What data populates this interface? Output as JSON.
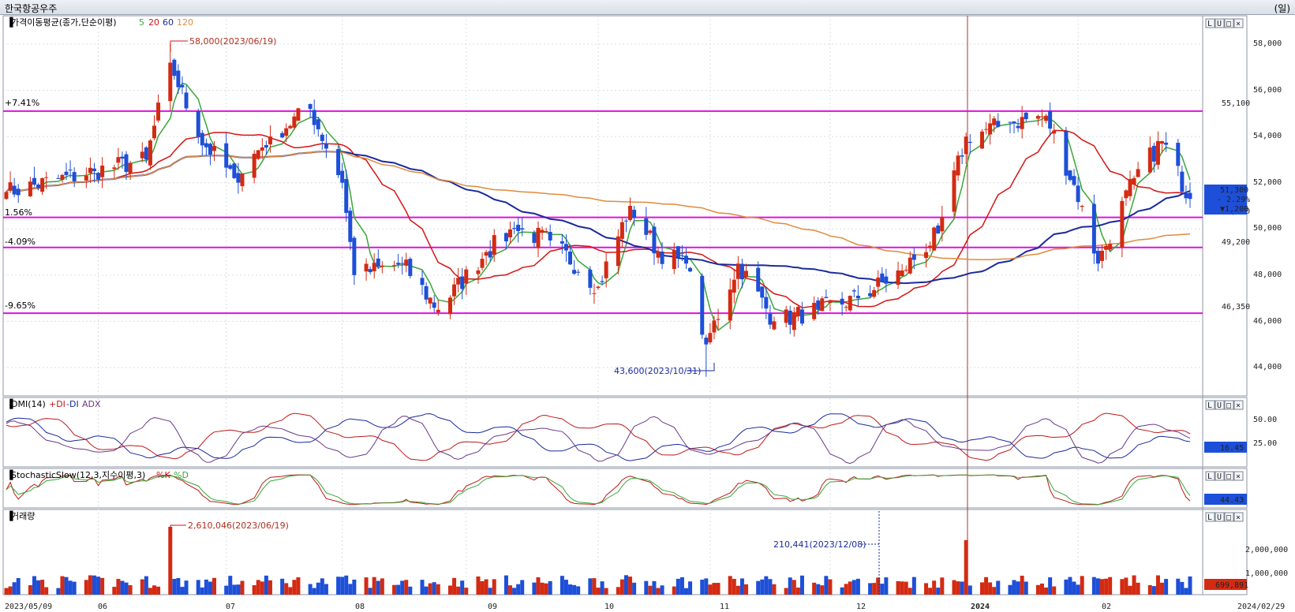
{
  "window": {
    "title": "한국항공우주",
    "unit": "(일)"
  },
  "colors": {
    "up": "#d42a12",
    "down": "#1d4fd8",
    "ma5": "#3aa63a",
    "ma20": "#d41414",
    "ma60": "#1a2a9c",
    "ma120": "#e08a3c",
    "hline": "#e010e0",
    "plusDI": "#c01818",
    "minusDI": "#1a2a9c",
    "adx": "#6a3a8a",
    "k": "#c01818",
    "d": "#3aa63a"
  },
  "price_panel": {
    "title": "가격이동평균(종가,단순이평)",
    "periods": [
      "5",
      "20",
      "60",
      "120"
    ],
    "yticks": [
      "58,000",
      "56,000",
      "54,000",
      "52,000",
      "50,000",
      "48,000",
      "46,000",
      "44,000"
    ],
    "pct_labels": [
      "+7.41%",
      "1.56%",
      "-4.09%",
      "-9.65%"
    ],
    "level_labels": [
      "55,100",
      "50,500",
      "49,200",
      "46,350"
    ],
    "high_note": "58,000(2023/06/19)",
    "low_note": "43,600(2023/10/31)",
    "last_price": "51,300",
    "last_change_pct": "- 2.29%",
    "last_change": "▼1,200"
  },
  "dmi_panel": {
    "title": "DMI(14)",
    "legend": [
      "+DI",
      "-DI",
      "ADX"
    ],
    "yticks": [
      "50.00",
      "25.00"
    ],
    "last": "16.45"
  },
  "stoch_panel": {
    "title": "StochasticSlow(12,3,지수이평,3)",
    "legend": [
      "%K",
      "%D"
    ],
    "last": "44.43"
  },
  "volume_panel": {
    "title": "거래량",
    "yticks": [
      "2,000,000",
      "1,000,000"
    ],
    "high_note": "2,610,046(2023/06/19)",
    "mid_note": "210,441(2023/12/08)",
    "last": "699,891"
  },
  "x_axis": {
    "start": "2023/05/09",
    "end": "2024/02/29",
    "months": [
      "06",
      "07",
      "08",
      "09",
      "10",
      "11",
      "12",
      "2024",
      "02"
    ]
  },
  "panel_buttons": [
    "L",
    "U",
    "□",
    "×"
  ],
  "chart_data": {
    "type": "candlestick",
    "y_unit": "KRW",
    "price_range": [
      43000,
      59000
    ],
    "reference_levels": [
      55100,
      50500,
      49200,
      46350
    ],
    "reference_pct": [
      "+7.41%",
      "1.56%",
      "-4.09%",
      "-9.65%"
    ],
    "anchors": [
      {
        "date": "2023/05/09",
        "close": 51600
      },
      {
        "date": "2023/05/31",
        "close": 52500
      },
      {
        "date": "2023/06/13",
        "close": 53000
      },
      {
        "date": "2023/06/19",
        "high": 58000,
        "close": 57200
      },
      {
        "date": "2023/06/26",
        "close": 54000
      },
      {
        "date": "2023/07/05",
        "close": 52200
      },
      {
        "date": "2023/07/14",
        "close": 54000
      },
      {
        "date": "2023/07/24",
        "close": 55200
      },
      {
        "date": "2023/08/01",
        "close": 52000
      },
      {
        "date": "2023/08/04",
        "close": 48000
      },
      {
        "date": "2023/08/16",
        "close": 48500
      },
      {
        "date": "2023/08/25",
        "close": 46500
      },
      {
        "date": "2023/09/06",
        "close": 49000
      },
      {
        "date": "2023/09/13",
        "close": 50000
      },
      {
        "date": "2023/09/22",
        "close": 49500
      },
      {
        "date": "2023/10/04",
        "close": 47500
      },
      {
        "date": "2023/10/12",
        "close": 51000
      },
      {
        "date": "2023/10/19",
        "close": 49000
      },
      {
        "date": "2023/10/26",
        "close": 48500
      },
      {
        "date": "2023/10/31",
        "low": 43600,
        "close": 45000
      },
      {
        "date": "2023/11/08",
        "close": 48500
      },
      {
        "date": "2023/11/17",
        "close": 46000
      },
      {
        "date": "2023/11/28",
        "close": 46500
      },
      {
        "date": "2023/12/08",
        "close": 47000
      },
      {
        "date": "2023/12/19",
        "close": 48200
      },
      {
        "date": "2023/12/28",
        "close": 49800
      },
      {
        "date": "2024/01/04",
        "close": 54000
      },
      {
        "date": "2024/01/15",
        "close": 54600
      },
      {
        "date": "2024/01/24",
        "close": 54900
      },
      {
        "date": "2024/02/02",
        "close": 51000
      },
      {
        "date": "2024/02/06",
        "close": 48500
      },
      {
        "date": "2024/02/15",
        "close": 52200
      },
      {
        "date": "2024/02/22",
        "close": 53800
      },
      {
        "date": "2024/02/29",
        "close": 51300
      }
    ],
    "last_close": 51300,
    "last_change": -1200,
    "last_change_pct": -2.29,
    "dmi_last": 16.45,
    "stoch_last": 44.43,
    "volume_high": {
      "date": "2023/06/19",
      "value": 2610046
    },
    "volume_note": {
      "date": "2023/12/08",
      "value": 210441
    },
    "volume_last": 699891
  }
}
